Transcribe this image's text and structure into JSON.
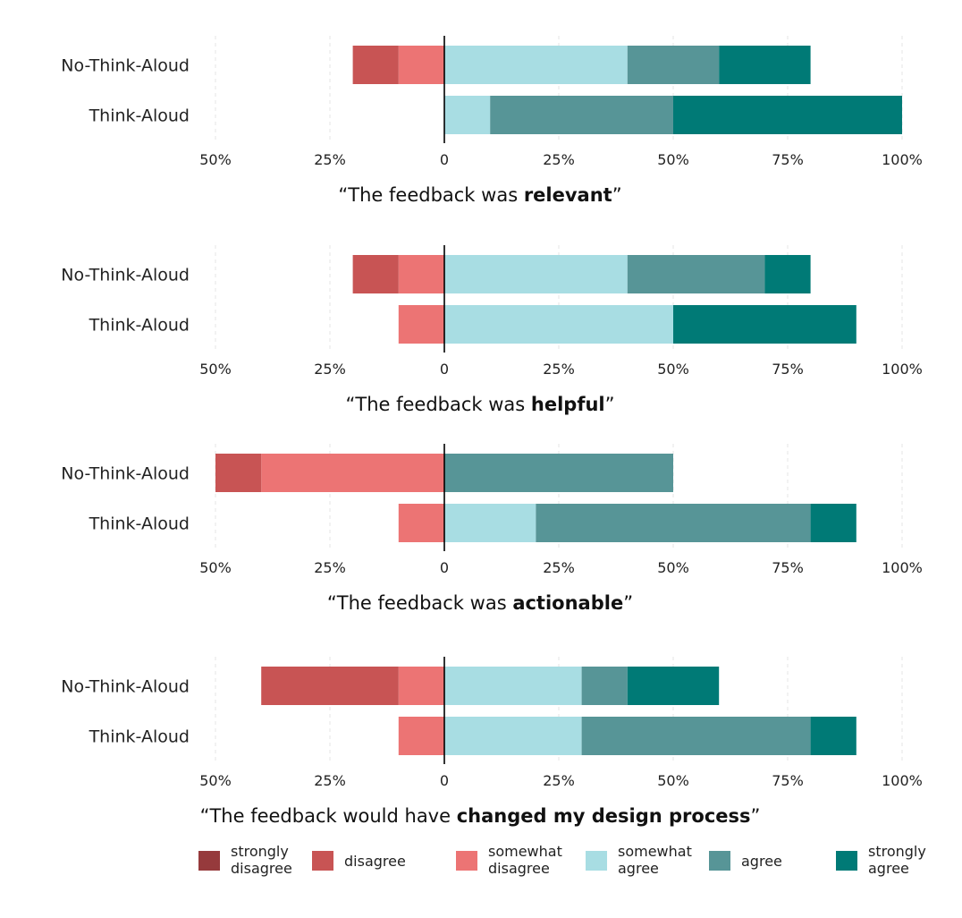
{
  "chart_data": {
    "type": "bar",
    "orientation": "horizontal-diverging",
    "stacked": true,
    "grid": true,
    "legend_position": "bottom",
    "xlim": [
      -50,
      100
    ],
    "x_ticks": [
      {
        "value": -50,
        "label": "50%"
      },
      {
        "value": -25,
        "label": "25%"
      },
      {
        "value": 0,
        "label": "0"
      },
      {
        "value": 25,
        "label": "25%"
      },
      {
        "value": 50,
        "label": "50%"
      },
      {
        "value": 75,
        "label": "75%"
      },
      {
        "value": 100,
        "label": "100%"
      }
    ],
    "categories_legend": [
      {
        "key": "strongly_disagree",
        "lines": [
          "strongly",
          "disagree"
        ],
        "color": "#963a3c",
        "side": "negative"
      },
      {
        "key": "disagree",
        "lines": [
          "disagree"
        ],
        "color": "#c85454",
        "side": "negative"
      },
      {
        "key": "somewhat_disagree",
        "lines": [
          "somewhat",
          "disagree"
        ],
        "color": "#ec7474",
        "side": "negative"
      },
      {
        "key": "somewhat_agree",
        "lines": [
          "somewhat",
          "agree"
        ],
        "color": "#a8dde3",
        "side": "positive"
      },
      {
        "key": "agree",
        "lines": [
          "agree"
        ],
        "color": "#579597",
        "side": "positive"
      },
      {
        "key": "strongly_agree",
        "lines": [
          "strongly",
          "agree"
        ],
        "color": "#007a76",
        "side": "positive"
      }
    ],
    "panels": [
      {
        "title_prefix": "“The feedback was ",
        "title_bold": "relevant",
        "title_suffix": "”",
        "groups": [
          {
            "label": "No-Think-Aloud",
            "values": {
              "strongly_disagree": 0,
              "disagree": 10,
              "somewhat_disagree": 10,
              "somewhat_agree": 40,
              "agree": 20,
              "strongly_agree": 20
            }
          },
          {
            "label": "Think-Aloud",
            "values": {
              "strongly_disagree": 0,
              "disagree": 0,
              "somewhat_disagree": 0,
              "somewhat_agree": 10,
              "agree": 40,
              "strongly_agree": 50
            }
          }
        ]
      },
      {
        "title_prefix": "“The feedback was ",
        "title_bold": "helpful",
        "title_suffix": "”",
        "groups": [
          {
            "label": "No-Think-Aloud",
            "values": {
              "strongly_disagree": 0,
              "disagree": 10,
              "somewhat_disagree": 10,
              "somewhat_agree": 40,
              "agree": 30,
              "strongly_agree": 10
            }
          },
          {
            "label": "Think-Aloud",
            "values": {
              "strongly_disagree": 0,
              "disagree": 0,
              "somewhat_disagree": 10,
              "somewhat_agree": 50,
              "agree": 0,
              "strongly_agree": 40
            }
          }
        ]
      },
      {
        "title_prefix": "“The feedback was ",
        "title_bold": "actionable",
        "title_suffix": "”",
        "groups": [
          {
            "label": "No-Think-Aloud",
            "values": {
              "strongly_disagree": 0,
              "disagree": 10,
              "somewhat_disagree": 40,
              "somewhat_agree": 0,
              "agree": 50,
              "strongly_agree": 0
            }
          },
          {
            "label": "Think-Aloud",
            "values": {
              "strongly_disagree": 0,
              "disagree": 0,
              "somewhat_disagree": 10,
              "somewhat_agree": 20,
              "agree": 60,
              "strongly_agree": 10
            }
          }
        ]
      },
      {
        "title_prefix": "“The feedback would have ",
        "title_bold": "changed my design process",
        "title_suffix": "”",
        "groups": [
          {
            "label": "No-Think-Aloud",
            "values": {
              "strongly_disagree": 0,
              "disagree": 30,
              "somewhat_disagree": 10,
              "somewhat_agree": 30,
              "agree": 10,
              "strongly_agree": 20
            }
          },
          {
            "label": "Think-Aloud",
            "values": {
              "strongly_disagree": 0,
              "disagree": 0,
              "somewhat_disagree": 10,
              "somewhat_agree": 30,
              "agree": 50,
              "strongly_agree": 10
            }
          }
        ]
      }
    ]
  }
}
